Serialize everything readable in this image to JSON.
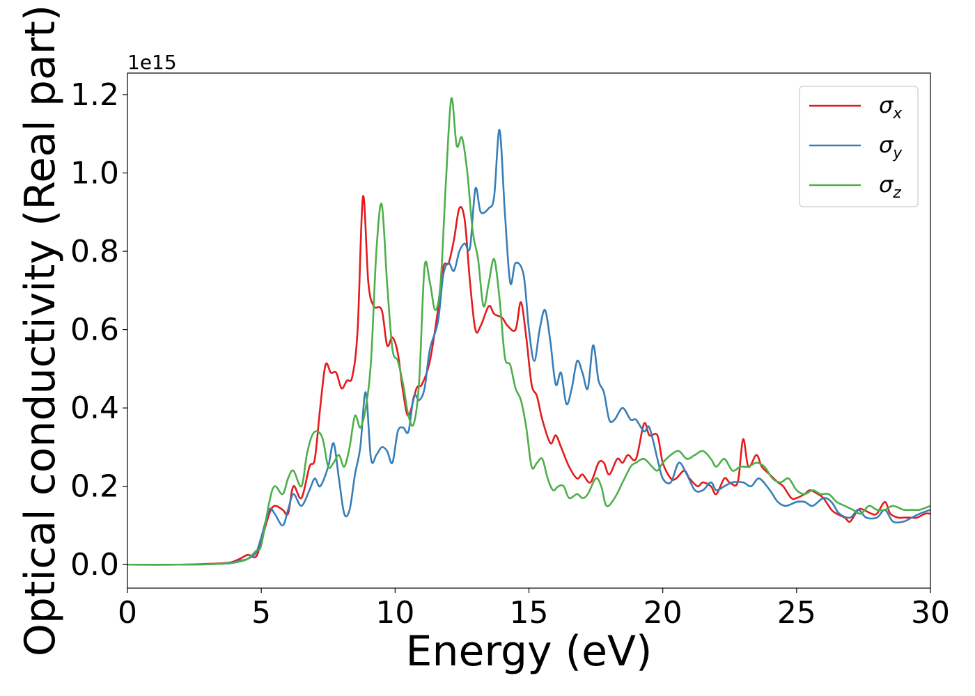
{
  "chart_data": {
    "type": "line",
    "title": "",
    "xlabel": "Energy (eV)",
    "ylabel": "Optical conductivity (Real part)",
    "y_offset_label": "1e15",
    "xlim": [
      0,
      30
    ],
    "ylim": [
      -0.06,
      1.255
    ],
    "x_ticks": [
      0,
      5,
      10,
      15,
      20,
      25,
      30
    ],
    "x_tick_labels": [
      "0",
      "5",
      "10",
      "15",
      "20",
      "25",
      "30"
    ],
    "y_ticks": [
      0.0,
      0.2,
      0.4,
      0.6,
      0.8,
      1.0,
      1.2
    ],
    "y_tick_labels": [
      "0.0",
      "0.2",
      "0.4",
      "0.6",
      "0.8",
      "1.0",
      "1.2"
    ],
    "grid": false,
    "legend_position": "top-right",
    "series": [
      {
        "name": "σx",
        "symbol": "σ",
        "subscript": "x",
        "color": "#e41a1c",
        "x": [
          0,
          2,
          3,
          3.8,
          4.2,
          4.5,
          4.8,
          5.0,
          5.3,
          5.5,
          5.8,
          6.0,
          6.2,
          6.5,
          6.8,
          7.0,
          7.2,
          7.4,
          7.6,
          7.8,
          8.0,
          8.2,
          8.4,
          8.6,
          8.8,
          9.0,
          9.2,
          9.5,
          9.7,
          9.9,
          10.1,
          10.3,
          10.5,
          10.8,
          11.0,
          11.3,
          11.6,
          11.8,
          12.0,
          12.2,
          12.4,
          12.6,
          12.8,
          13.0,
          13.2,
          13.5,
          13.7,
          14.0,
          14.2,
          14.5,
          14.7,
          14.9,
          15.1,
          15.3,
          15.5,
          15.8,
          16.0,
          16.2,
          16.5,
          16.8,
          17.0,
          17.3,
          17.6,
          17.8,
          18.0,
          18.3,
          18.5,
          18.7,
          19.0,
          19.3,
          19.5,
          19.8,
          20.0,
          20.3,
          20.5,
          20.8,
          21.0,
          21.3,
          21.5,
          21.8,
          22.0,
          22.3,
          22.5,
          22.8,
          23.0,
          23.2,
          23.5,
          23.7,
          24.0,
          24.3,
          24.5,
          24.8,
          25.0,
          25.3,
          25.5,
          25.8,
          26.0,
          26.3,
          26.5,
          26.8,
          27.0,
          27.3,
          27.5,
          27.8,
          28.0,
          28.3,
          28.5,
          28.8,
          29.0,
          29.3,
          29.5,
          29.8,
          30.0
        ],
        "y": [
          0,
          0,
          0.002,
          0.005,
          0.015,
          0.025,
          0.02,
          0.06,
          0.13,
          0.15,
          0.14,
          0.13,
          0.2,
          0.17,
          0.25,
          0.27,
          0.4,
          0.51,
          0.49,
          0.49,
          0.45,
          0.47,
          0.48,
          0.6,
          0.94,
          0.72,
          0.66,
          0.65,
          0.56,
          0.58,
          0.54,
          0.44,
          0.38,
          0.45,
          0.46,
          0.52,
          0.65,
          0.76,
          0.77,
          0.83,
          0.91,
          0.88,
          0.72,
          0.6,
          0.61,
          0.66,
          0.64,
          0.63,
          0.61,
          0.6,
          0.67,
          0.58,
          0.46,
          0.43,
          0.37,
          0.31,
          0.33,
          0.3,
          0.25,
          0.22,
          0.23,
          0.21,
          0.26,
          0.26,
          0.23,
          0.27,
          0.26,
          0.28,
          0.27,
          0.36,
          0.33,
          0.33,
          0.26,
          0.22,
          0.22,
          0.24,
          0.22,
          0.2,
          0.21,
          0.2,
          0.18,
          0.22,
          0.21,
          0.21,
          0.32,
          0.25,
          0.28,
          0.25,
          0.23,
          0.21,
          0.2,
          0.17,
          0.17,
          0.18,
          0.19,
          0.18,
          0.17,
          0.14,
          0.13,
          0.12,
          0.11,
          0.14,
          0.14,
          0.13,
          0.13,
          0.16,
          0.13,
          0.12,
          0.12,
          0.12,
          0.12,
          0.13,
          0.13
        ]
      },
      {
        "name": "σy",
        "symbol": "σ",
        "subscript": "y",
        "color": "#377eb8",
        "x": [
          0,
          2,
          3,
          3.8,
          4.2,
          4.5,
          4.8,
          5.0,
          5.3,
          5.5,
          5.8,
          6.0,
          6.2,
          6.5,
          6.8,
          7.0,
          7.2,
          7.5,
          7.7,
          7.9,
          8.1,
          8.3,
          8.5,
          8.7,
          8.9,
          9.1,
          9.3,
          9.5,
          9.7,
          9.9,
          10.1,
          10.3,
          10.5,
          10.7,
          10.9,
          11.1,
          11.3,
          11.6,
          11.8,
          12.0,
          12.2,
          12.4,
          12.6,
          12.8,
          13.0,
          13.2,
          13.5,
          13.7,
          13.9,
          14.1,
          14.3,
          14.5,
          14.8,
          15.0,
          15.2,
          15.4,
          15.6,
          15.8,
          16.0,
          16.2,
          16.4,
          16.6,
          16.8,
          17.0,
          17.2,
          17.4,
          17.6,
          17.8,
          18.0,
          18.2,
          18.5,
          18.8,
          19.0,
          19.3,
          19.5,
          19.8,
          20.0,
          20.3,
          20.6,
          20.9,
          21.2,
          21.5,
          21.8,
          22.0,
          22.3,
          22.6,
          23.0,
          23.3,
          23.6,
          24.0,
          24.3,
          24.6,
          25.0,
          25.3,
          25.6,
          26.0,
          26.3,
          26.6,
          27.0,
          27.3,
          27.6,
          28.0,
          28.3,
          28.6,
          29.0,
          29.3,
          29.6,
          30.0
        ],
        "y": [
          0,
          0,
          0.001,
          0.004,
          0.01,
          0.015,
          0.03,
          0.07,
          0.14,
          0.13,
          0.1,
          0.14,
          0.18,
          0.15,
          0.19,
          0.22,
          0.2,
          0.25,
          0.31,
          0.22,
          0.13,
          0.14,
          0.23,
          0.3,
          0.44,
          0.27,
          0.28,
          0.3,
          0.29,
          0.26,
          0.34,
          0.35,
          0.34,
          0.43,
          0.42,
          0.45,
          0.55,
          0.62,
          0.74,
          0.77,
          0.75,
          0.8,
          0.82,
          0.81,
          0.96,
          0.9,
          0.91,
          0.94,
          1.11,
          0.9,
          0.72,
          0.77,
          0.74,
          0.6,
          0.52,
          0.6,
          0.65,
          0.57,
          0.46,
          0.49,
          0.41,
          0.45,
          0.52,
          0.49,
          0.45,
          0.56,
          0.47,
          0.44,
          0.37,
          0.37,
          0.4,
          0.37,
          0.37,
          0.34,
          0.35,
          0.27,
          0.22,
          0.21,
          0.26,
          0.23,
          0.19,
          0.19,
          0.21,
          0.19,
          0.2,
          0.21,
          0.21,
          0.2,
          0.22,
          0.19,
          0.16,
          0.15,
          0.16,
          0.16,
          0.15,
          0.17,
          0.16,
          0.13,
          0.12,
          0.14,
          0.12,
          0.12,
          0.14,
          0.11,
          0.11,
          0.12,
          0.13,
          0.14
        ]
      },
      {
        "name": "σz",
        "symbol": "σ",
        "subscript": "z",
        "color": "#4daf4a",
        "x": [
          0,
          2,
          3,
          3.8,
          4.2,
          4.5,
          4.8,
          5.0,
          5.3,
          5.5,
          5.8,
          6.0,
          6.2,
          6.5,
          6.7,
          6.9,
          7.1,
          7.3,
          7.5,
          7.7,
          7.9,
          8.1,
          8.3,
          8.5,
          8.7,
          8.9,
          9.1,
          9.3,
          9.5,
          9.7,
          9.9,
          10.1,
          10.3,
          10.5,
          10.7,
          10.9,
          11.1,
          11.3,
          11.5,
          11.7,
          11.9,
          12.1,
          12.3,
          12.5,
          12.7,
          12.9,
          13.1,
          13.3,
          13.5,
          13.7,
          13.9,
          14.1,
          14.3,
          14.5,
          14.7,
          14.9,
          15.1,
          15.3,
          15.5,
          15.7,
          15.9,
          16.1,
          16.3,
          16.5,
          16.8,
          17.0,
          17.2,
          17.5,
          17.7,
          17.9,
          18.2,
          18.5,
          18.8,
          19.0,
          19.3,
          19.6,
          19.8,
          20.0,
          20.3,
          20.6,
          20.9,
          21.2,
          21.5,
          21.8,
          22.0,
          22.3,
          22.6,
          22.9,
          23.2,
          23.5,
          23.8,
          24.1,
          24.4,
          24.7,
          25.0,
          25.3,
          25.6,
          25.9,
          26.2,
          26.5,
          26.8,
          27.1,
          27.4,
          27.7,
          28.0,
          28.3,
          28.6,
          29.0,
          29.3,
          29.6,
          30.0
        ],
        "y": [
          0,
          0,
          0.001,
          0.003,
          0.008,
          0.015,
          0.035,
          0.05,
          0.16,
          0.2,
          0.18,
          0.22,
          0.24,
          0.2,
          0.28,
          0.33,
          0.34,
          0.32,
          0.25,
          0.26,
          0.28,
          0.25,
          0.3,
          0.38,
          0.35,
          0.4,
          0.52,
          0.8,
          0.92,
          0.72,
          0.55,
          0.52,
          0.46,
          0.38,
          0.36,
          0.47,
          0.76,
          0.72,
          0.65,
          0.72,
          0.98,
          1.19,
          1.07,
          1.09,
          1.0,
          0.85,
          0.78,
          0.66,
          0.72,
          0.78,
          0.68,
          0.53,
          0.51,
          0.45,
          0.42,
          0.35,
          0.25,
          0.26,
          0.27,
          0.22,
          0.19,
          0.2,
          0.2,
          0.17,
          0.18,
          0.17,
          0.18,
          0.22,
          0.2,
          0.15,
          0.17,
          0.21,
          0.25,
          0.26,
          0.27,
          0.25,
          0.24,
          0.26,
          0.28,
          0.29,
          0.27,
          0.28,
          0.29,
          0.27,
          0.25,
          0.27,
          0.24,
          0.25,
          0.25,
          0.26,
          0.25,
          0.22,
          0.21,
          0.22,
          0.19,
          0.18,
          0.19,
          0.18,
          0.18,
          0.16,
          0.15,
          0.14,
          0.13,
          0.15,
          0.14,
          0.14,
          0.15,
          0.14,
          0.14,
          0.14,
          0.15
        ]
      }
    ]
  }
}
